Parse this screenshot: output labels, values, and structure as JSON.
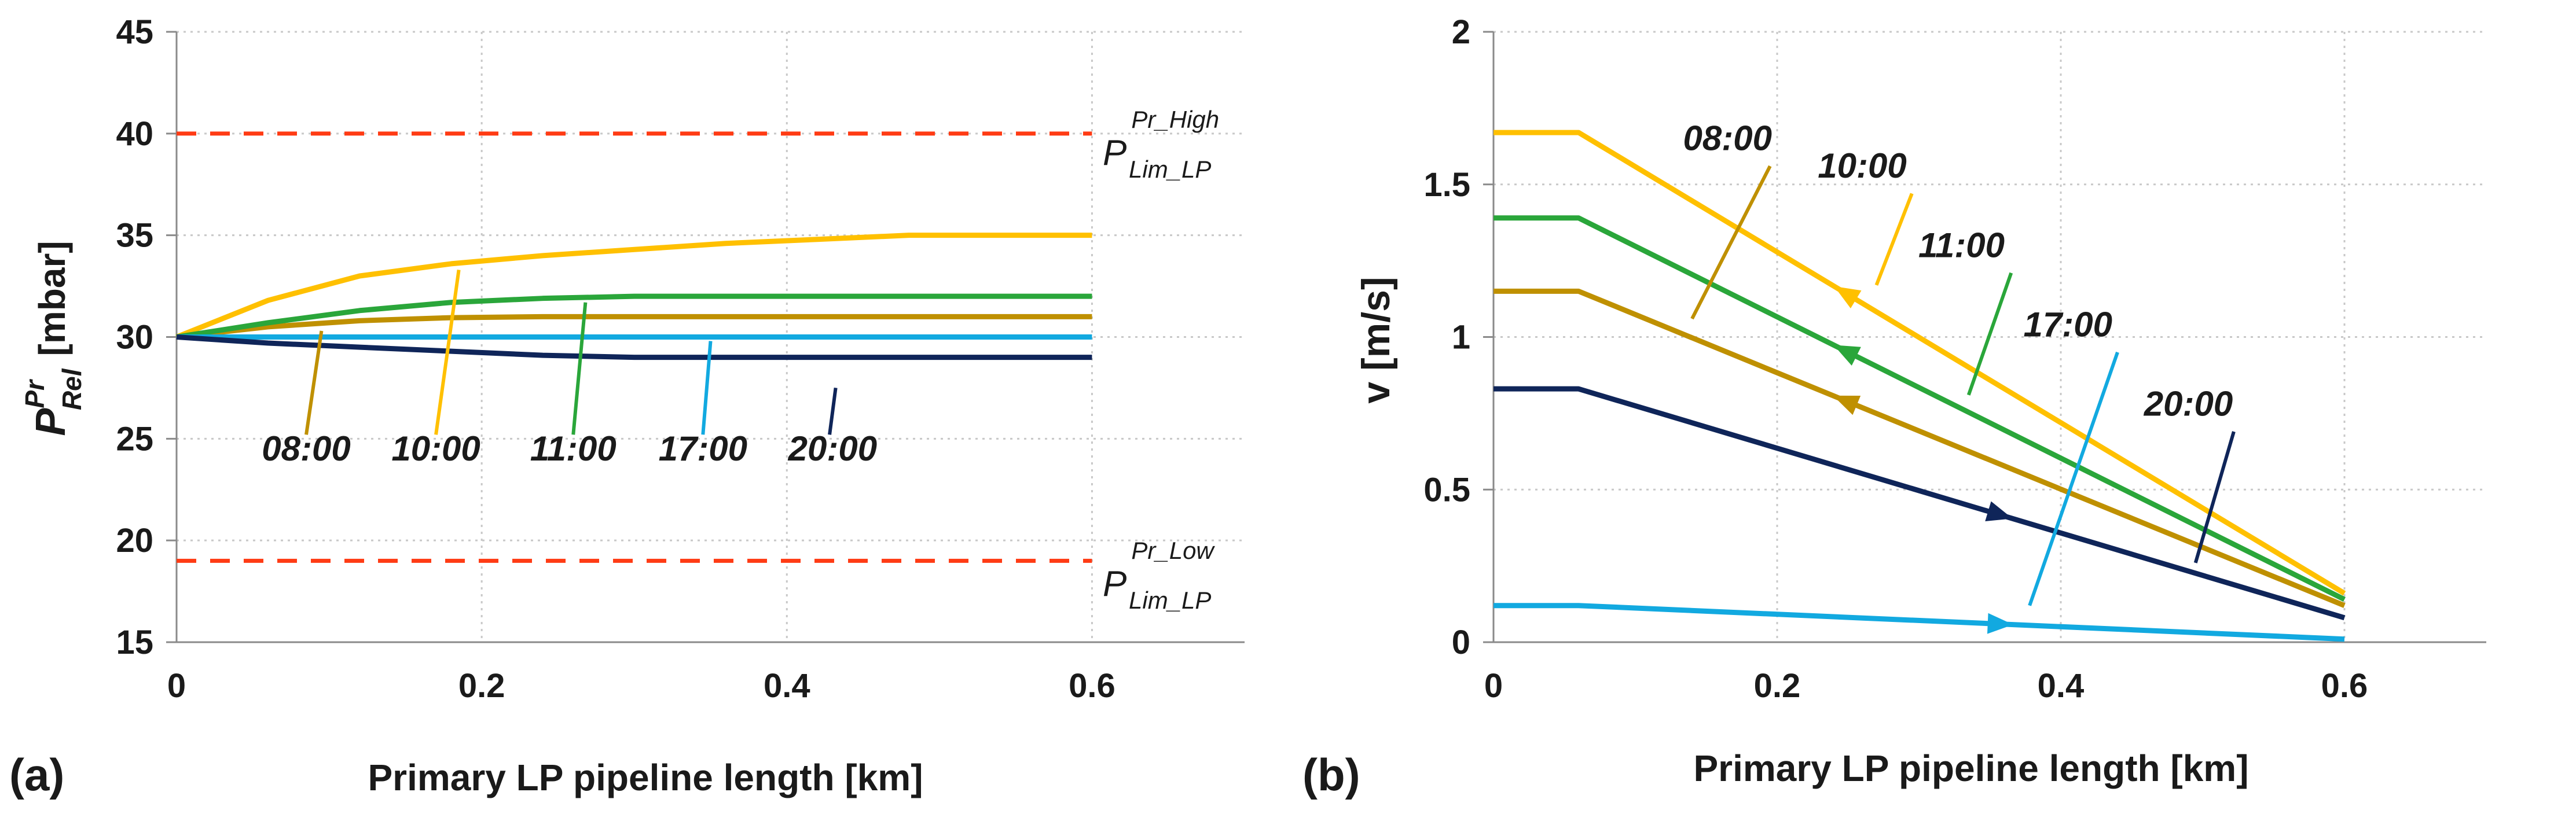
{
  "chart_data": [
    {
      "type": "line",
      "panel_label": "(a)",
      "xlabel": "Primary LP pipeline length [km]",
      "ylabel": {
        "main": "P",
        "sup": "Pr",
        "sub": "Rel",
        "unit": "[mbar]"
      },
      "xlim": [
        0,
        0.7
      ],
      "ylim": [
        15,
        45
      ],
      "xticks": [
        "0",
        "0.2",
        "0.4",
        "0.6"
      ],
      "yticks": [
        "15",
        "20",
        "25",
        "30",
        "35",
        "40",
        "45"
      ],
      "grid": true,
      "limits": [
        {
          "name": "P_Lim_LP^Pr_High",
          "main": "P",
          "sup": "Pr_High",
          "sub": "Lim_LP",
          "y": 40,
          "color": "#ff3b14"
        },
        {
          "name": "P_Lim_LP^Pr_Low",
          "main": "P",
          "sup": "Pr_Low",
          "sub": "Lim_LP",
          "y": 19,
          "color": "#ff3b14"
        }
      ],
      "series": [
        {
          "name": "08:00",
          "color": "#bf9000",
          "x": [
            0,
            0.06,
            0.12,
            0.18,
            0.24,
            0.3,
            0.36,
            0.42,
            0.48,
            0.54,
            0.6
          ],
          "y": [
            30,
            30.5,
            30.8,
            30.95,
            31,
            31,
            31,
            31,
            31,
            31,
            31
          ]
        },
        {
          "name": "10:00",
          "color": "#ffc000",
          "x": [
            0,
            0.06,
            0.12,
            0.18,
            0.24,
            0.3,
            0.36,
            0.42,
            0.48,
            0.54,
            0.6
          ],
          "y": [
            30,
            31.8,
            33,
            33.6,
            34,
            34.3,
            34.6,
            34.8,
            35,
            35,
            35
          ]
        },
        {
          "name": "11:00",
          "color": "#2aa63a",
          "x": [
            0,
            0.06,
            0.12,
            0.18,
            0.24,
            0.3,
            0.36,
            0.42,
            0.48,
            0.54,
            0.6
          ],
          "y": [
            30,
            30.7,
            31.3,
            31.7,
            31.9,
            32,
            32,
            32,
            32,
            32,
            32
          ]
        },
        {
          "name": "17:00",
          "color": "#12a9e0",
          "x": [
            0,
            0.6
          ],
          "y": [
            30,
            30
          ]
        },
        {
          "name": "20:00",
          "color": "#0f2559",
          "x": [
            0,
            0.06,
            0.12,
            0.18,
            0.24,
            0.3,
            0.36,
            0.42,
            0.48,
            0.54,
            0.6
          ],
          "y": [
            30,
            29.7,
            29.5,
            29.3,
            29.1,
            29,
            29,
            29,
            29,
            29,
            29
          ]
        }
      ],
      "annotations": [
        {
          "text": "08:00",
          "series": "08:00",
          "label_x": 0.085,
          "label_y": 24.5,
          "line_from": [
            0.085,
            25.2
          ],
          "line_to": [
            0.095,
            30.3
          ]
        },
        {
          "text": "10:00",
          "series": "10:00",
          "label_x": 0.17,
          "label_y": 24.5,
          "line_from": [
            0.17,
            25.2
          ],
          "line_to": [
            0.185,
            33.3
          ]
        },
        {
          "text": "11:00",
          "series": "11:00",
          "label_x": 0.26,
          "label_y": 24.5,
          "line_from": [
            0.26,
            25.2
          ],
          "line_to": [
            0.268,
            31.7
          ]
        },
        {
          "text": "17:00",
          "series": "17:00",
          "label_x": 0.345,
          "label_y": 24.5,
          "line_from": [
            0.345,
            25.2
          ],
          "line_to": [
            0.35,
            29.8
          ]
        },
        {
          "text": "20:00",
          "series": "20:00",
          "label_x": 0.43,
          "label_y": 24.5,
          "line_from": [
            0.428,
            25.2
          ],
          "line_to": [
            0.432,
            27.5
          ]
        }
      ]
    },
    {
      "type": "line",
      "panel_label": "(b)",
      "xlabel": "Primary LP pipeline length [km]",
      "ylabel": {
        "main": "v [m/s]"
      },
      "xlim": [
        0,
        0.7
      ],
      "ylim": [
        0,
        2
      ],
      "xticks": [
        "0",
        "0.2",
        "0.4",
        "0.6"
      ],
      "yticks": [
        "0",
        "0.5",
        "1",
        "1.5",
        "2"
      ],
      "grid": true,
      "series": [
        {
          "name": "08:00",
          "color": "#bf9000",
          "x": [
            0,
            0.06,
            0.6
          ],
          "y": [
            1.15,
            1.15,
            0.12
          ],
          "arrow_at": 0.25,
          "arrow_dir": "left"
        },
        {
          "name": "10:00",
          "color": "#ffc000",
          "x": [
            0,
            0.06,
            0.6
          ],
          "y": [
            1.67,
            1.67,
            0.16
          ],
          "arrow_at": 0.25,
          "arrow_dir": "left"
        },
        {
          "name": "11:00",
          "color": "#2aa63a",
          "x": [
            0,
            0.06,
            0.6
          ],
          "y": [
            1.39,
            1.39,
            0.14
          ],
          "arrow_at": 0.25,
          "arrow_dir": "left"
        },
        {
          "name": "17:00",
          "color": "#12a9e0",
          "x": [
            0,
            0.06,
            0.6
          ],
          "y": [
            0.12,
            0.12,
            0.01
          ],
          "arrow_at": 0.355,
          "arrow_dir": "right"
        },
        {
          "name": "20:00",
          "color": "#0f2559",
          "x": [
            0,
            0.06,
            0.6
          ],
          "y": [
            0.83,
            0.83,
            0.08
          ],
          "arrow_at": 0.355,
          "arrow_dir": "right"
        }
      ],
      "annotations": [
        {
          "text": "08:00",
          "series": "08:00",
          "label_x": 0.165,
          "label_y": 1.65,
          "line_from": [
            0.195,
            1.56
          ],
          "line_to": [
            0.14,
            1.06
          ]
        },
        {
          "text": "10:00",
          "series": "10:00",
          "label_x": 0.26,
          "label_y": 1.56,
          "line_from": [
            0.295,
            1.47
          ],
          "line_to": [
            0.27,
            1.17
          ]
        },
        {
          "text": "11:00",
          "series": "11:00",
          "label_x": 0.33,
          "label_y": 1.3,
          "line_from": [
            0.365,
            1.21
          ],
          "line_to": [
            0.335,
            0.81
          ]
        },
        {
          "text": "17:00",
          "series": "17:00",
          "label_x": 0.405,
          "label_y": 1.04,
          "line_from": [
            0.44,
            0.95
          ],
          "line_to": [
            0.378,
            0.12
          ]
        },
        {
          "text": "20:00",
          "series": "20:00",
          "label_x": 0.49,
          "label_y": 0.78,
          "line_from": [
            0.522,
            0.69
          ],
          "line_to": [
            0.495,
            0.26
          ]
        }
      ]
    }
  ]
}
